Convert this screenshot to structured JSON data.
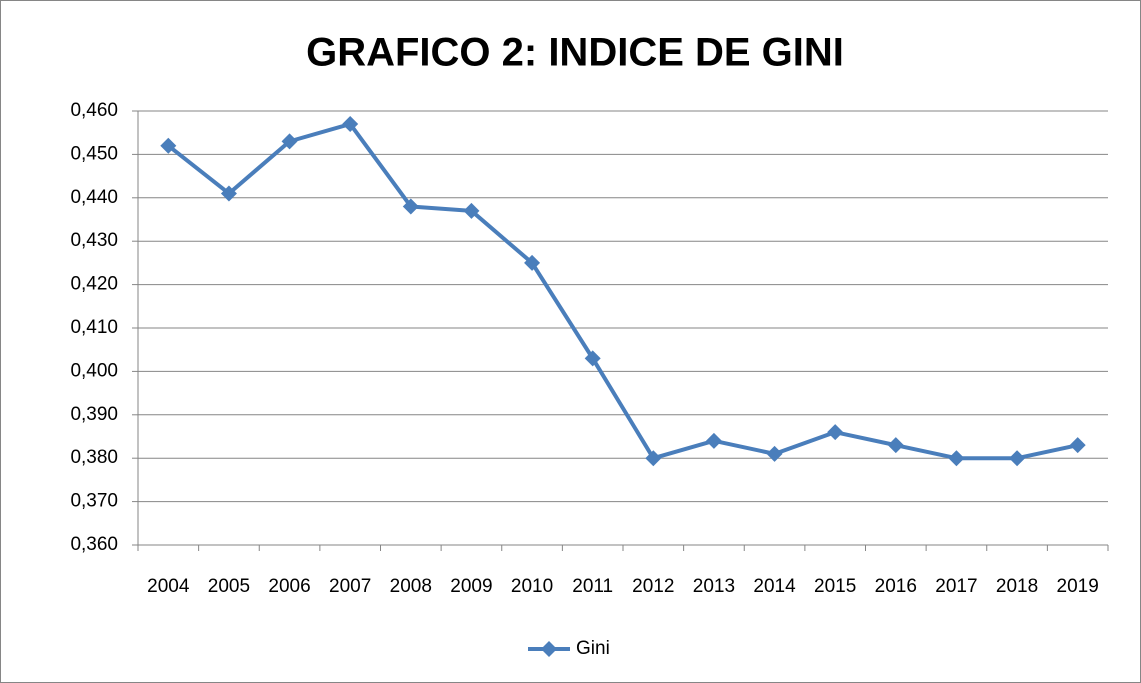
{
  "chart_data": {
    "type": "line",
    "title": "GRAFICO 2: INDICE DE GINI",
    "categories": [
      "2004",
      "2005",
      "2006",
      "2007",
      "2008",
      "2009",
      "2010",
      "2011",
      "2012",
      "2013",
      "2014",
      "2015",
      "2016",
      "2017",
      "2018",
      "2019"
    ],
    "series": [
      {
        "name": "Gini",
        "color": "#4a7ebb",
        "values": [
          0.452,
          0.441,
          0.453,
          0.457,
          0.438,
          0.437,
          0.425,
          0.403,
          0.38,
          0.384,
          0.381,
          0.386,
          0.383,
          0.38,
          0.38,
          0.383
        ]
      }
    ],
    "ylim": [
      0.36,
      0.46
    ],
    "yticks": [
      {
        "value": 0.36,
        "label": "0,360"
      },
      {
        "value": 0.37,
        "label": "0,370"
      },
      {
        "value": 0.38,
        "label": "0,380"
      },
      {
        "value": 0.39,
        "label": "0,390"
      },
      {
        "value": 0.4,
        "label": "0,400"
      },
      {
        "value": 0.41,
        "label": "0,410"
      },
      {
        "value": 0.42,
        "label": "0,420"
      },
      {
        "value": 0.43,
        "label": "0,430"
      },
      {
        "value": 0.44,
        "label": "0,440"
      },
      {
        "value": 0.45,
        "label": "0,450"
      },
      {
        "value": 0.46,
        "label": "0,460"
      }
    ],
    "grid": true,
    "legend": "bottom"
  }
}
